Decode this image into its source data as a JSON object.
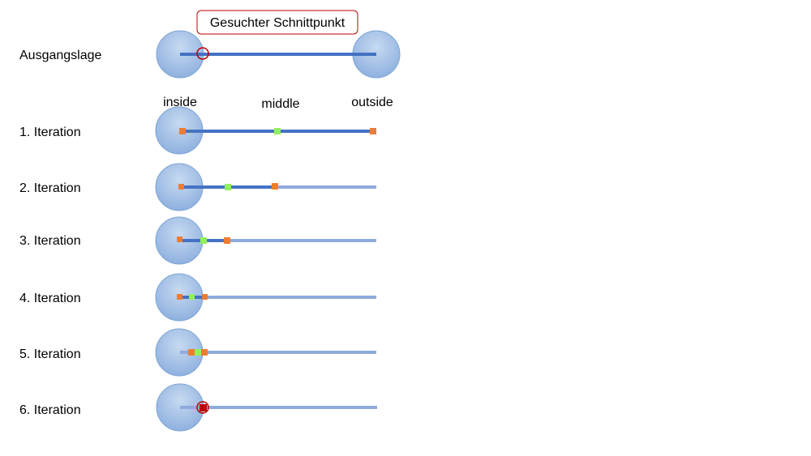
{
  "callout": {
    "label": "Gesuchter Schnittpunkt"
  },
  "columns": {
    "inside": "inside",
    "middle": "middle",
    "outside": "outside"
  },
  "rows": [
    {
      "label": "Ausgangslage"
    },
    {
      "label": "1. Iteration"
    },
    {
      "label": "2. Iteration"
    },
    {
      "label": "3. Iteration"
    },
    {
      "label": "4. Iteration"
    },
    {
      "label": "5. Iteration"
    },
    {
      "label": "6. Iteration"
    }
  ],
  "colors": {
    "circle_fill_light": "#bed3ee",
    "circle_fill_dark": "#8fb1df",
    "circle_stroke": "#7ea4d6",
    "line_active": "#4472c4",
    "line_inactive": "#8faadc",
    "marker_bound": "#ed7d31",
    "marker_middle": "#92f05a",
    "highlight_ring": "#c00000",
    "callout_border": "#c00000",
    "result_marker": "#c00000"
  }
}
